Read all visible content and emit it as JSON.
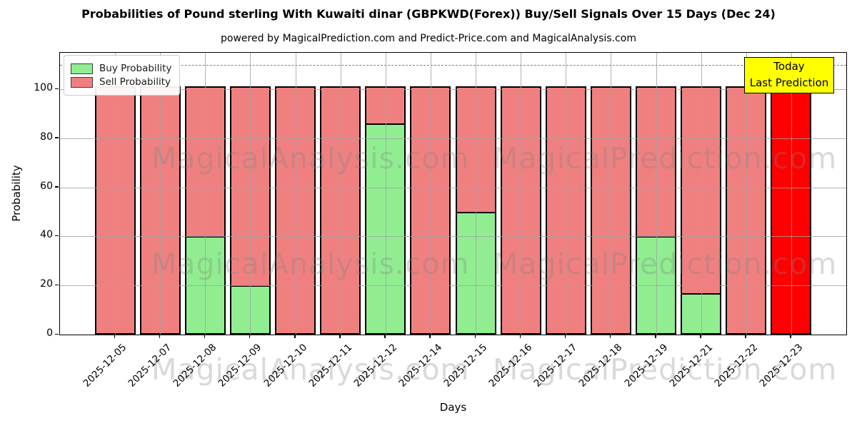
{
  "page": {
    "title": "Probabilities of Pound sterling With Kuwaiti dinar (GBPKWD(Forex)) Buy/Sell Signals Over 15 Days (Dec 24)",
    "subtitle": "powered by MagicalPrediction.com and Predict-Price.com and MagicalAnalysis.com"
  },
  "chart_data": {
    "type": "bar",
    "stacked": true,
    "title": "Probabilities of Pound sterling With Kuwaiti dinar (GBPKWD(Forex)) Buy/Sell Signals Over 15 Days (Dec 24)",
    "xlabel": "Days",
    "ylabel": "Probability",
    "ylim": [
      0,
      115
    ],
    "yticks": [
      0,
      20,
      40,
      60,
      80,
      100
    ],
    "dashed_line_y": 110,
    "grid": true,
    "legend_position": "upper-left",
    "categories": [
      "2025-12-05",
      "2025-12-07",
      "2025-12-08",
      "2025-12-09",
      "2025-12-10",
      "2025-12-11",
      "2025-12-12",
      "2025-12-14",
      "2025-12-15",
      "2025-12-16",
      "2025-12-17",
      "2025-12-18",
      "2025-12-19",
      "2025-12-21",
      "2025-12-22",
      "2025-12-23"
    ],
    "series": [
      {
        "name": "Buy Probability",
        "color": "#90ee90",
        "values": [
          0,
          0,
          40,
          20,
          0,
          0,
          86,
          0,
          50,
          0,
          0,
          0,
          40,
          17,
          0,
          0
        ]
      },
      {
        "name": "Sell Probability",
        "color": "#f08080",
        "values": [
          100,
          100,
          60,
          80,
          100,
          100,
          14,
          100,
          50,
          100,
          100,
          100,
          60,
          83,
          100,
          100
        ]
      }
    ],
    "highlight": {
      "index": 15,
      "bar_color": "#ff0000",
      "note": "Today / Last Prediction"
    }
  },
  "legend": {
    "items": [
      {
        "label": "Buy Probability",
        "color": "#90ee90"
      },
      {
        "label": "Sell Probability",
        "color": "#f08080"
      }
    ]
  },
  "annotation_box": {
    "line1": "Today",
    "line2": "Last Prediction",
    "bg_color": "#ffff00"
  },
  "watermarks": {
    "left_text": "MagicalAnalysis.com",
    "right_text": "MagicalPrediction.com"
  },
  "axes": {
    "xlabel": "Days",
    "ylabel": "Probability"
  },
  "colors": {
    "buy": "#90ee90",
    "sell": "#f08080",
    "today_bar": "#ff0000",
    "annotation_bg": "#ffff00",
    "grid": "#a0a0a0"
  }
}
